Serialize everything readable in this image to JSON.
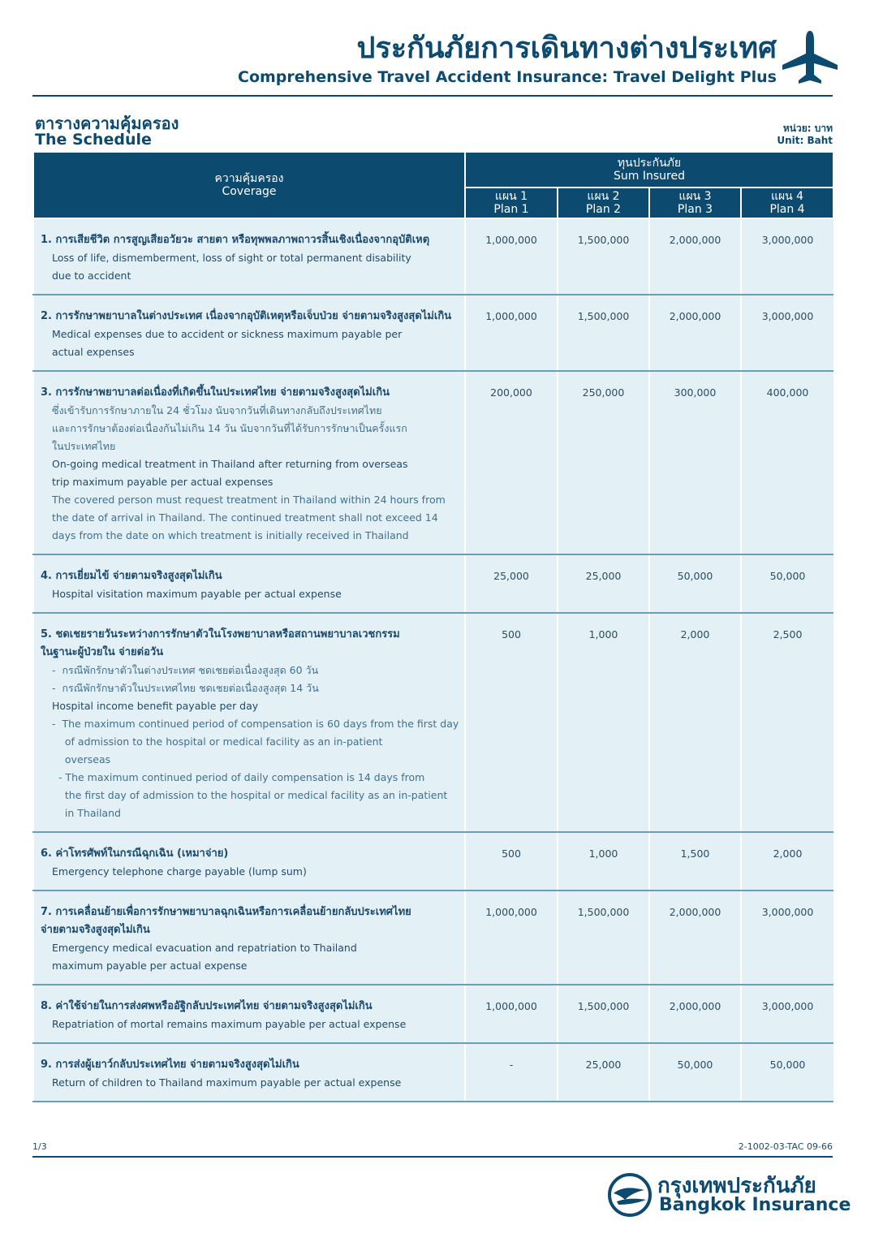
{
  "header": {
    "title_th": "ประกันภัยการเดินทางต่างประเทศ",
    "title_en": "Comprehensive Travel Accident Insurance: Travel Delight Plus"
  },
  "section": {
    "title_th": "ตารางความคุ้มครอง",
    "title_en": "The Schedule",
    "unit_th": "หน่วย: บาท",
    "unit_en": "Unit: Baht"
  },
  "table": {
    "coverage_th": "ความคุ้มครอง",
    "coverage_en": "Coverage",
    "sum_th": "ทุนประกันภัย",
    "sum_en": "Sum Insured",
    "plans": [
      {
        "th": "แผน 1",
        "en": "Plan 1"
      },
      {
        "th": "แผน 2",
        "en": "Plan 2"
      },
      {
        "th": "แผน 3",
        "en": "Plan 3"
      },
      {
        "th": "แผน 4",
        "en": "Plan 4"
      }
    ],
    "rows": [
      {
        "title_th": [
          "1. การเสียชีวิต การสูญเสียอวัยวะ สายตา หรือทุพพลภาพถาวรสิ้นเชิงเนื่องจากอุบัติเหตุ"
        ],
        "details_th": [],
        "title_en": [
          "Loss of life, dismemberment, loss of sight or total permanent disability",
          "due to accident"
        ],
        "details_en": [],
        "values": [
          "1,000,000",
          "1,500,000",
          "2,000,000",
          "3,000,000"
        ]
      },
      {
        "title_th": [
          "2. การรักษาพยาบาลในต่างประเทศ เนื่องจากอุบัติเหตุหรือเจ็บป่วย จ่ายตามจริงสูงสุดไม่เกิน"
        ],
        "details_th": [],
        "title_en": [
          "Medical expenses due to accident or sickness maximum payable per",
          "actual expenses"
        ],
        "details_en": [],
        "values": [
          "1,000,000",
          "1,500,000",
          "2,000,000",
          "3,000,000"
        ]
      },
      {
        "title_th": [
          "3. การรักษาพยาบาลต่อเนื่องที่เกิดขึ้นในประเทศไทย จ่ายตามจริงสูงสุดไม่เกิน"
        ],
        "details_th": [
          "ซึ่งเข้ารับการรักษาภายใน 24 ชั่วโมง นับจากวันที่เดินทางกลับถึงประเทศไทย",
          "และการรักษาต้องต่อเนื่องกันไม่เกิน 14 วัน นับจากวันที่ได้รับการรักษาเป็นครั้งแรก",
          "ในประเทศไทย"
        ],
        "title_en": [
          "On-going medical treatment in Thailand after returning from overseas",
          "trip maximum payable per actual expenses"
        ],
        "details_en": [
          "The covered person must request treatment in Thailand within 24 hours from",
          "the date of arrival in Thailand. The continued treatment shall not exceed 14",
          "days from the date on which treatment is initially received in Thailand"
        ],
        "values": [
          "200,000",
          "250,000",
          "300,000",
          "400,000"
        ]
      },
      {
        "title_th": [
          "4. การเยี่ยมไข้ จ่ายตามจริงสูงสุดไม่เกิน"
        ],
        "details_th": [],
        "title_en": [
          "Hospital visitation maximum payable per actual expense"
        ],
        "details_en": [],
        "values": [
          "25,000",
          "25,000",
          "50,000",
          "50,000"
        ]
      },
      {
        "title_th": [
          "5. ชดเชยรายวันระหว่างการรักษาตัวในโรงพยาบาลหรือสถานพยาบาลเวชกรรม",
          "ในฐานะผู้ป่วยใน จ่ายต่อวัน"
        ],
        "details_th": [
          "-  กรณีพักรักษาตัวในต่างประเทศ ชดเชยต่อเนื่องสูงสุด 60 วัน",
          "-  กรณีพักรักษาตัวในประเทศไทย ชดเชยต่อเนื่องสูงสุด 14 วัน"
        ],
        "title_en": [
          "Hospital income benefit payable per day"
        ],
        "details_en": [
          "-  The maximum continued period of compensation is 60 days from the first day",
          "    of admission to the hospital or medical facility as an in-patient",
          "    overseas",
          "  - The maximum continued period of daily compensation is 14 days from",
          "    the first day of admission to the hospital or medical facility as an in-patient",
          "    in Thailand"
        ],
        "values": [
          "500",
          "1,000",
          "2,000",
          "2,500"
        ]
      },
      {
        "title_th": [
          "6. ค่าโทรศัพท์ในกรณีฉุกเฉิน (เหมาจ่าย)"
        ],
        "details_th": [],
        "title_en": [
          "Emergency telephone charge payable (lump sum)"
        ],
        "details_en": [],
        "values": [
          "500",
          "1,000",
          "1,500",
          "2,000"
        ]
      },
      {
        "title_th": [
          "7. การเคลื่อนย้ายเพื่อการรักษาพยาบาลฉุกเฉินหรือการเคลื่อนย้ายกลับประเทศไทย",
          "จ่ายตามจริงสูงสุดไม่เกิน"
        ],
        "details_th": [],
        "title_en": [
          "Emergency medical evacuation and repatriation to Thailand",
          "maximum payable per actual expense"
        ],
        "details_en": [],
        "values": [
          "1,000,000",
          "1,500,000",
          "2,000,000",
          "3,000,000"
        ]
      },
      {
        "title_th": [
          "8. ค่าใช้จ่ายในการส่งศพหรืออัฐิกลับประเทศไทย จ่ายตามจริงสูงสุดไม่เกิน"
        ],
        "details_th": [],
        "title_en": [
          "Repatriation of mortal remains maximum payable per actual expense"
        ],
        "details_en": [],
        "values": [
          "1,000,000",
          "1,500,000",
          "2,000,000",
          "3,000,000"
        ]
      },
      {
        "title_th": [
          "9. การส่งผู้เยาว์กลับประเทศไทย จ่ายตามจริงสูงสุดไม่เกิน"
        ],
        "details_th": [],
        "title_en": [
          "Return of children to Thailand maximum payable per actual expense"
        ],
        "details_en": [],
        "values": [
          "-",
          "25,000",
          "50,000",
          "50,000"
        ]
      }
    ]
  },
  "footer": {
    "page": "1/3",
    "code": "2-1002-03-TAC 09-66",
    "brand_th": "กรุงเทพประกันภัย",
    "brand_en": "Bangkok Insurance"
  }
}
